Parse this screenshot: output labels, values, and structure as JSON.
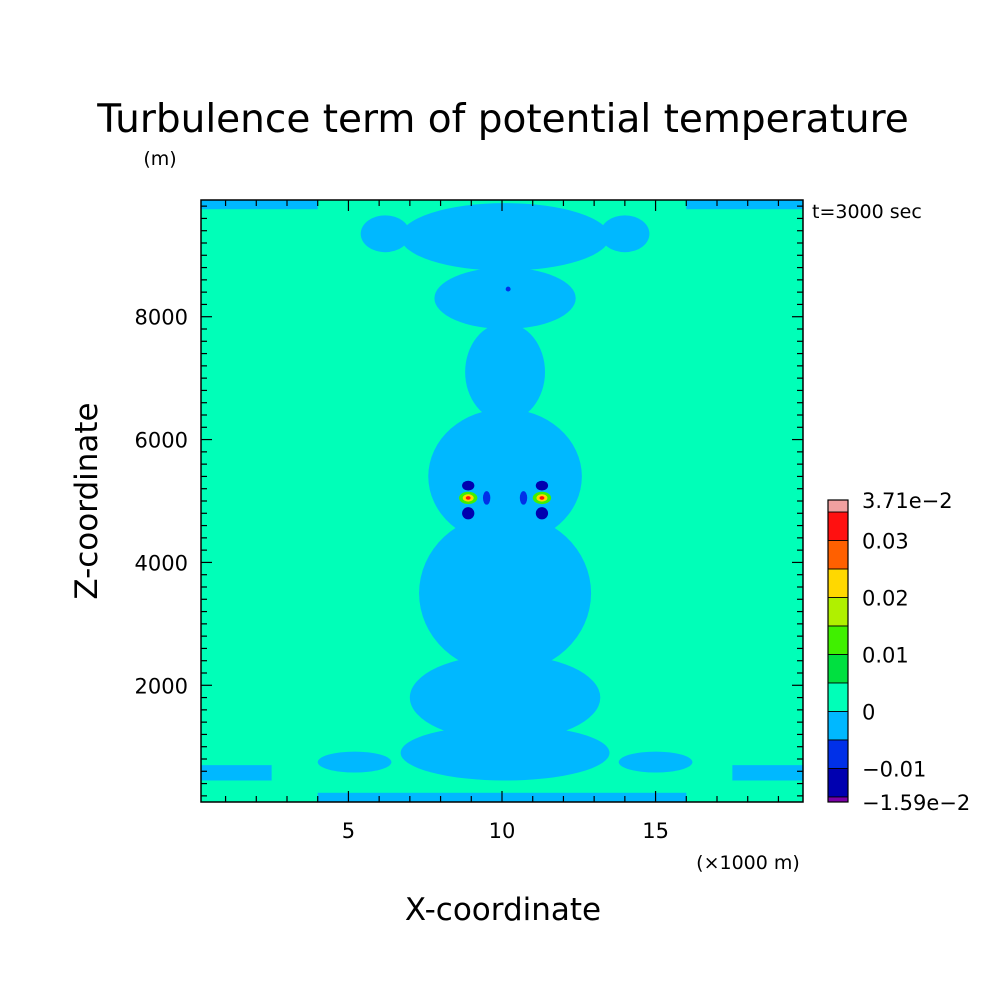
{
  "chart_data": {
    "type": "heatmap",
    "title": "Turbulence term of potential temperature",
    "xlabel": "X-coordinate",
    "ylabel": "Z-coordinate",
    "x_unit": "(×1000 m)",
    "y_unit": "(m)",
    "time_label": "t=3000 sec",
    "xlim": [
      0.2,
      19.8
    ],
    "ylim": [
      100,
      9900
    ],
    "x_ticks": [
      {
        "value": 5,
        "label": "5"
      },
      {
        "value": 10,
        "label": "10"
      },
      {
        "value": 15,
        "label": "15"
      }
    ],
    "y_ticks": [
      {
        "value": 2000,
        "label": "2000"
      },
      {
        "value": 4000,
        "label": "4000"
      },
      {
        "value": 6000,
        "label": "6000"
      },
      {
        "value": 8000,
        "label": "8000"
      }
    ],
    "colorbar": {
      "levels": [
        -0.0159,
        -0.015,
        -0.01,
        -0.005,
        0,
        0.005,
        0.01,
        0.015,
        0.02,
        0.025,
        0.03,
        0.035,
        0.0371
      ],
      "colors": [
        "#7a00a8",
        "#0000b0",
        "#0030e8",
        "#00b8ff",
        "#00ffb8",
        "#00e040",
        "#40f000",
        "#b0f000",
        "#ffd800",
        "#ff6000",
        "#ff1010",
        "#f0a0a0"
      ],
      "labels": [
        {
          "value": 0.0371,
          "text": "3.71e−2"
        },
        {
          "value": 0.03,
          "text": "0.03"
        },
        {
          "value": 0.02,
          "text": "0.02"
        },
        {
          "value": 0.01,
          "text": "0.01"
        },
        {
          "value": 0,
          "text": "0"
        },
        {
          "value": -0.01,
          "text": "−0.01"
        },
        {
          "value": -0.0159,
          "text": "−1.59e−2"
        }
      ]
    },
    "background_value": 0.002,
    "features": [
      {
        "shape": "band",
        "z": [
          9750,
          9900
        ],
        "x": [
          0.2,
          4.0
        ],
        "value": -0.002
      },
      {
        "shape": "band",
        "z": [
          9750,
          9900
        ],
        "x": [
          16.0,
          19.8
        ],
        "value": -0.002
      },
      {
        "shape": "band",
        "z": [
          450,
          700
        ],
        "x": [
          0.2,
          2.5
        ],
        "value": -0.002
      },
      {
        "shape": "band",
        "z": [
          450,
          700
        ],
        "x": [
          17.5,
          19.8
        ],
        "value": -0.002
      },
      {
        "shape": "band",
        "z": [
          100,
          250
        ],
        "x": [
          4.0,
          16.0
        ],
        "value": -0.002
      },
      {
        "shape": "ellipse",
        "x": 10.1,
        "z": 9300,
        "rx": 3.4,
        "rz": 550,
        "value": -0.002
      },
      {
        "shape": "ellipse",
        "x": 10.1,
        "z": 8300,
        "rx": 2.3,
        "rz": 500,
        "value": -0.002
      },
      {
        "shape": "ellipse",
        "x": 10.1,
        "z": 7100,
        "rx": 1.3,
        "rz": 800,
        "value": -0.002
      },
      {
        "shape": "ellipse",
        "x": 10.1,
        "z": 5400,
        "rx": 2.5,
        "rz": 1100,
        "value": -0.002
      },
      {
        "shape": "ellipse",
        "x": 10.1,
        "z": 3500,
        "rx": 2.8,
        "rz": 1300,
        "value": -0.002
      },
      {
        "shape": "ellipse",
        "x": 10.1,
        "z": 1800,
        "rx": 3.1,
        "rz": 700,
        "value": -0.002
      },
      {
        "shape": "ellipse",
        "x": 10.1,
        "z": 900,
        "rx": 3.4,
        "rz": 450,
        "value": -0.002
      },
      {
        "shape": "ellipse",
        "x": 5.2,
        "z": 750,
        "rx": 1.2,
        "rz": 170,
        "value": -0.002
      },
      {
        "shape": "ellipse",
        "x": 15.0,
        "z": 750,
        "rx": 1.2,
        "rz": 170,
        "value": -0.002
      },
      {
        "shape": "ellipse",
        "x": 6.2,
        "z": 9350,
        "rx": 0.8,
        "rz": 300,
        "value": -0.002
      },
      {
        "shape": "ellipse",
        "x": 14.0,
        "z": 9350,
        "rx": 0.8,
        "rz": 300,
        "value": -0.002
      },
      {
        "shape": "ellipse",
        "x": 8.9,
        "z": 5250,
        "rx": 0.2,
        "rz": 80,
        "value": -0.013
      },
      {
        "shape": "ellipse",
        "x": 11.3,
        "z": 5250,
        "rx": 0.2,
        "rz": 80,
        "value": -0.013
      },
      {
        "shape": "ellipse",
        "x": 8.9,
        "z": 4800,
        "rx": 0.2,
        "rz": 100,
        "value": -0.013
      },
      {
        "shape": "ellipse",
        "x": 11.3,
        "z": 4800,
        "rx": 0.2,
        "rz": 100,
        "value": -0.013
      },
      {
        "shape": "ellipse",
        "x": 9.5,
        "z": 5050,
        "rx": 0.12,
        "rz": 110,
        "value": -0.008
      },
      {
        "shape": "ellipse",
        "x": 10.7,
        "z": 5050,
        "rx": 0.12,
        "rz": 110,
        "value": -0.008
      },
      {
        "shape": "ellipse",
        "x": 8.9,
        "z": 5050,
        "rx": 0.3,
        "rz": 100,
        "value": 0.012
      },
      {
        "shape": "ellipse",
        "x": 11.3,
        "z": 5050,
        "rx": 0.3,
        "rz": 100,
        "value": 0.012
      },
      {
        "shape": "ellipse",
        "x": 8.9,
        "z": 5050,
        "rx": 0.18,
        "rz": 60,
        "value": 0.022
      },
      {
        "shape": "ellipse",
        "x": 11.3,
        "z": 5050,
        "rx": 0.18,
        "rz": 60,
        "value": 0.022
      },
      {
        "shape": "ellipse",
        "x": 8.9,
        "z": 5050,
        "rx": 0.08,
        "rz": 30,
        "value": 0.034
      },
      {
        "shape": "ellipse",
        "x": 11.3,
        "z": 5050,
        "rx": 0.08,
        "rz": 30,
        "value": 0.034
      },
      {
        "shape": "ellipse",
        "x": 10.2,
        "z": 8450,
        "rx": 0.08,
        "rz": 40,
        "value": -0.01
      }
    ]
  }
}
